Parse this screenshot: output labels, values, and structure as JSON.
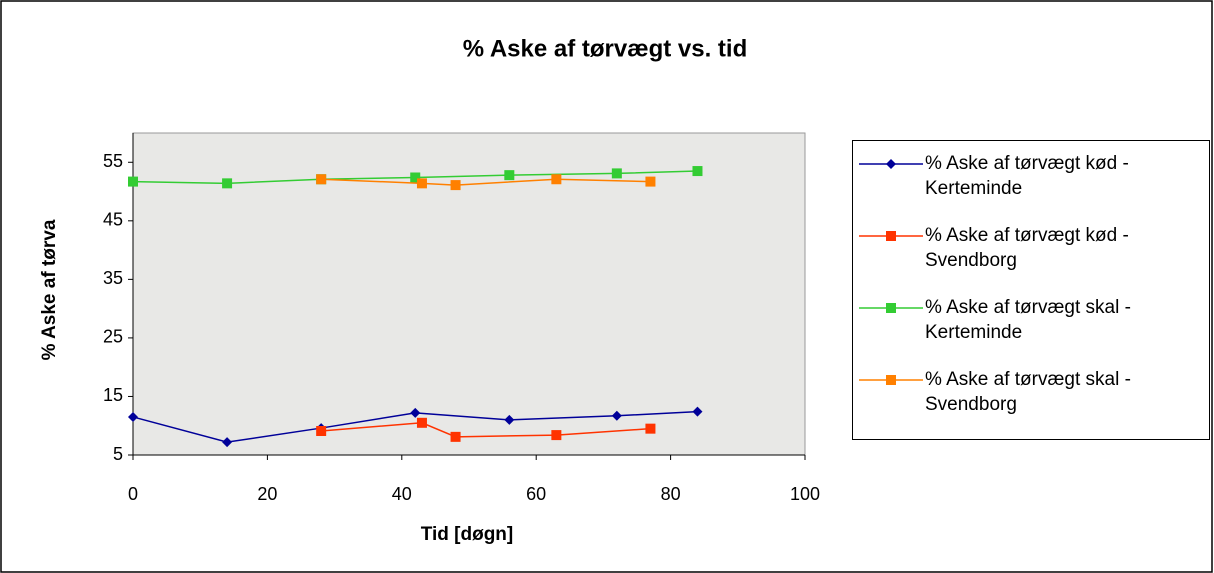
{
  "chart_data": {
    "type": "line",
    "title": "% Aske af tørvægt vs. tid",
    "x_label": "Tid [døgn]",
    "y_label": "% Aske af tørva",
    "xlim": [
      0,
      100
    ],
    "xticks": [
      0,
      20,
      40,
      60,
      80,
      100
    ],
    "ylim": [
      5,
      60
    ],
    "yticks": [
      5,
      15,
      25,
      35,
      45,
      55
    ],
    "legend": "right",
    "series": [
      {
        "name": "% Aske af tørvægt kød - Kerteminde",
        "color": "#000099",
        "marker": "diamond",
        "x": [
          0,
          14,
          28,
          42,
          56,
          72,
          84
        ],
        "values": [
          11.5,
          7.2,
          9.6,
          12.2,
          11.0,
          11.7,
          12.4
        ]
      },
      {
        "name": "% Aske af tørvægt kød - Svendborg",
        "color": "#ff3300",
        "marker": "square",
        "x": [
          28,
          43,
          48,
          63,
          77
        ],
        "values": [
          9.1,
          10.5,
          8.1,
          8.4,
          9.5
        ]
      },
      {
        "name": "% Aske af tørvægt skal - Kerteminde",
        "color": "#33cc33",
        "marker": "square",
        "x": [
          0,
          14,
          28,
          42,
          56,
          72,
          84
        ],
        "values": [
          51.7,
          51.4,
          52.1,
          52.4,
          52.8,
          53.1,
          53.5
        ]
      },
      {
        "name": "% Aske af tørvægt skal - Svendborg",
        "color": "#ff8000",
        "marker": "square",
        "x": [
          28,
          43,
          48,
          63,
          77
        ],
        "values": [
          52.1,
          51.4,
          51.1,
          52.1,
          51.7
        ]
      }
    ]
  }
}
